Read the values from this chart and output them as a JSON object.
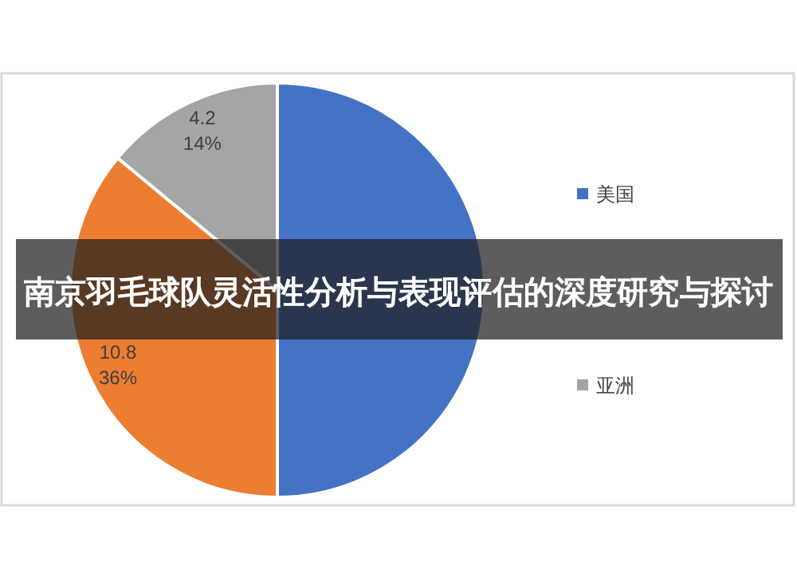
{
  "chart_data": {
    "type": "pie",
    "title": "南京羽毛球队灵活性分析与表现评估的深度研究与探讨",
    "categories": [
      "美国",
      null,
      "亚洲"
    ],
    "values": [
      15,
      10.8,
      4.2
    ],
    "colors": [
      "#4472c4",
      "#ed7d31",
      "#a5a5a5"
    ],
    "value_labels": [
      null,
      "10.8\n36%",
      "4.2\n14%"
    ],
    "legend": "right"
  }
}
